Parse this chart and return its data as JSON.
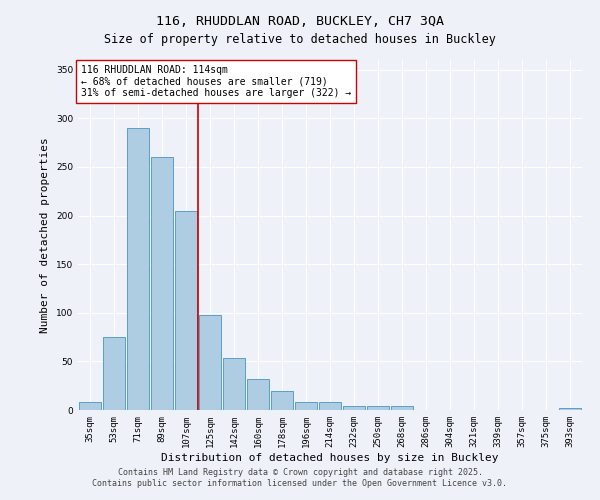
{
  "title1": "116, RHUDDLAN ROAD, BUCKLEY, CH7 3QA",
  "title2": "Size of property relative to detached houses in Buckley",
  "xlabel": "Distribution of detached houses by size in Buckley",
  "ylabel": "Number of detached properties",
  "categories": [
    "35sqm",
    "53sqm",
    "71sqm",
    "89sqm",
    "107sqm",
    "125sqm",
    "142sqm",
    "160sqm",
    "178sqm",
    "196sqm",
    "214sqm",
    "232sqm",
    "250sqm",
    "268sqm",
    "286sqm",
    "304sqm",
    "321sqm",
    "339sqm",
    "357sqm",
    "375sqm",
    "393sqm"
  ],
  "values": [
    8,
    75,
    290,
    260,
    205,
    98,
    53,
    32,
    20,
    8,
    8,
    4,
    4,
    4,
    0,
    0,
    0,
    0,
    0,
    0,
    2
  ],
  "bar_color": "#aecde3",
  "bar_edgecolor": "#5a9ec9",
  "ylim": [
    0,
    360
  ],
  "yticks": [
    0,
    50,
    100,
    150,
    200,
    250,
    300,
    350
  ],
  "vline_x": 4.5,
  "vline_color": "#cc0000",
  "annotation_title": "116 RHUDDLAN ROAD: 114sqm",
  "annotation_line1": "← 68% of detached houses are smaller (719)",
  "annotation_line2": "31% of semi-detached houses are larger (322) →",
  "annotation_box_color": "#ffffff",
  "annotation_box_edgecolor": "#cc0000",
  "footer1": "Contains HM Land Registry data © Crown copyright and database right 2025.",
  "footer2": "Contains public sector information licensed under the Open Government Licence v3.0.",
  "background_color": "#eef2f8",
  "grid_color": "#ffffff",
  "title_fontsize": 9.5,
  "subtitle_fontsize": 8.5,
  "axis_label_fontsize": 8,
  "tick_fontsize": 6.5,
  "annotation_fontsize": 7,
  "footer_fontsize": 6
}
